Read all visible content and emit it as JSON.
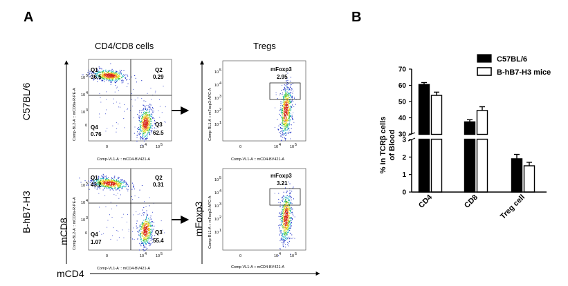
{
  "panel_a": {
    "letter": "A",
    "col1_header": "CD4/CD8 cells",
    "col2_header": "Tregs",
    "row1_label": "C57BL/6",
    "row2_label": "B-hB7-H3",
    "left_axis_label": "mCD8",
    "mid_axis_label": "mFoxp3",
    "bottom_axis_label": "mCD4",
    "dot_ylabel": "Comp-BL2-A :: mCD8a-R-PE-A",
    "dot_xlabel": "Comp-VL1-A :: mCD4-BV421-A",
    "foxp3_ylabel": "Comp-RL1-A :: mFoxp3-APC-A",
    "foxp3_xlabel": "Comp-VL1-A :: mCD4-BV421-A",
    "ticks": {
      "t0": "0",
      "t3": "10",
      "t4": "10",
      "t5": "10",
      "e3": "3",
      "e4": "4",
      "e5": "5",
      "e2": "2",
      "e1": "1"
    },
    "quad_names": {
      "q1": "Q1",
      "q2": "Q2",
      "q3": "Q3",
      "q4": "Q4"
    },
    "gate_name": "mFoxp3",
    "row1": {
      "q1": "36.5",
      "q2": "0.29",
      "q3": "62.5",
      "q4": "0.76",
      "foxp3": "2.95"
    },
    "row2": {
      "q1": "43.2",
      "q2": "0.31",
      "q3": "55.4",
      "q4": "1.07",
      "foxp3": "3.21"
    }
  },
  "panel_b": {
    "letter": "B",
    "legend": [
      "C57BL/6",
      "B-hB7-H3 mice"
    ],
    "colors": {
      "c57": "#000000",
      "hb7": "#ffffff"
    }
  },
  "chart_data": {
    "type": "bar",
    "categories": [
      "CD4",
      "CD8",
      "Treg cell"
    ],
    "series": [
      {
        "name": "C57BL/6",
        "values": [
          60.5,
          37.5,
          1.9
        ],
        "errors": [
          1.2,
          1.3,
          0.25
        ]
      },
      {
        "name": "B-hB7-H3 mice",
        "values": [
          53.8,
          44.5,
          1.5
        ],
        "errors": [
          2.0,
          2.3,
          0.2
        ]
      }
    ],
    "ylabel_line1": "% in TCRβ cells",
    "ylabel_line2": "of  Blood",
    "axis_break": {
      "upper_range": [
        30,
        70
      ],
      "lower_range": [
        0,
        3
      ]
    },
    "upper_ticks": [
      "30",
      "40",
      "50",
      "60",
      "70"
    ],
    "lower_ticks": [
      "0",
      "1",
      "2",
      "3"
    ]
  }
}
